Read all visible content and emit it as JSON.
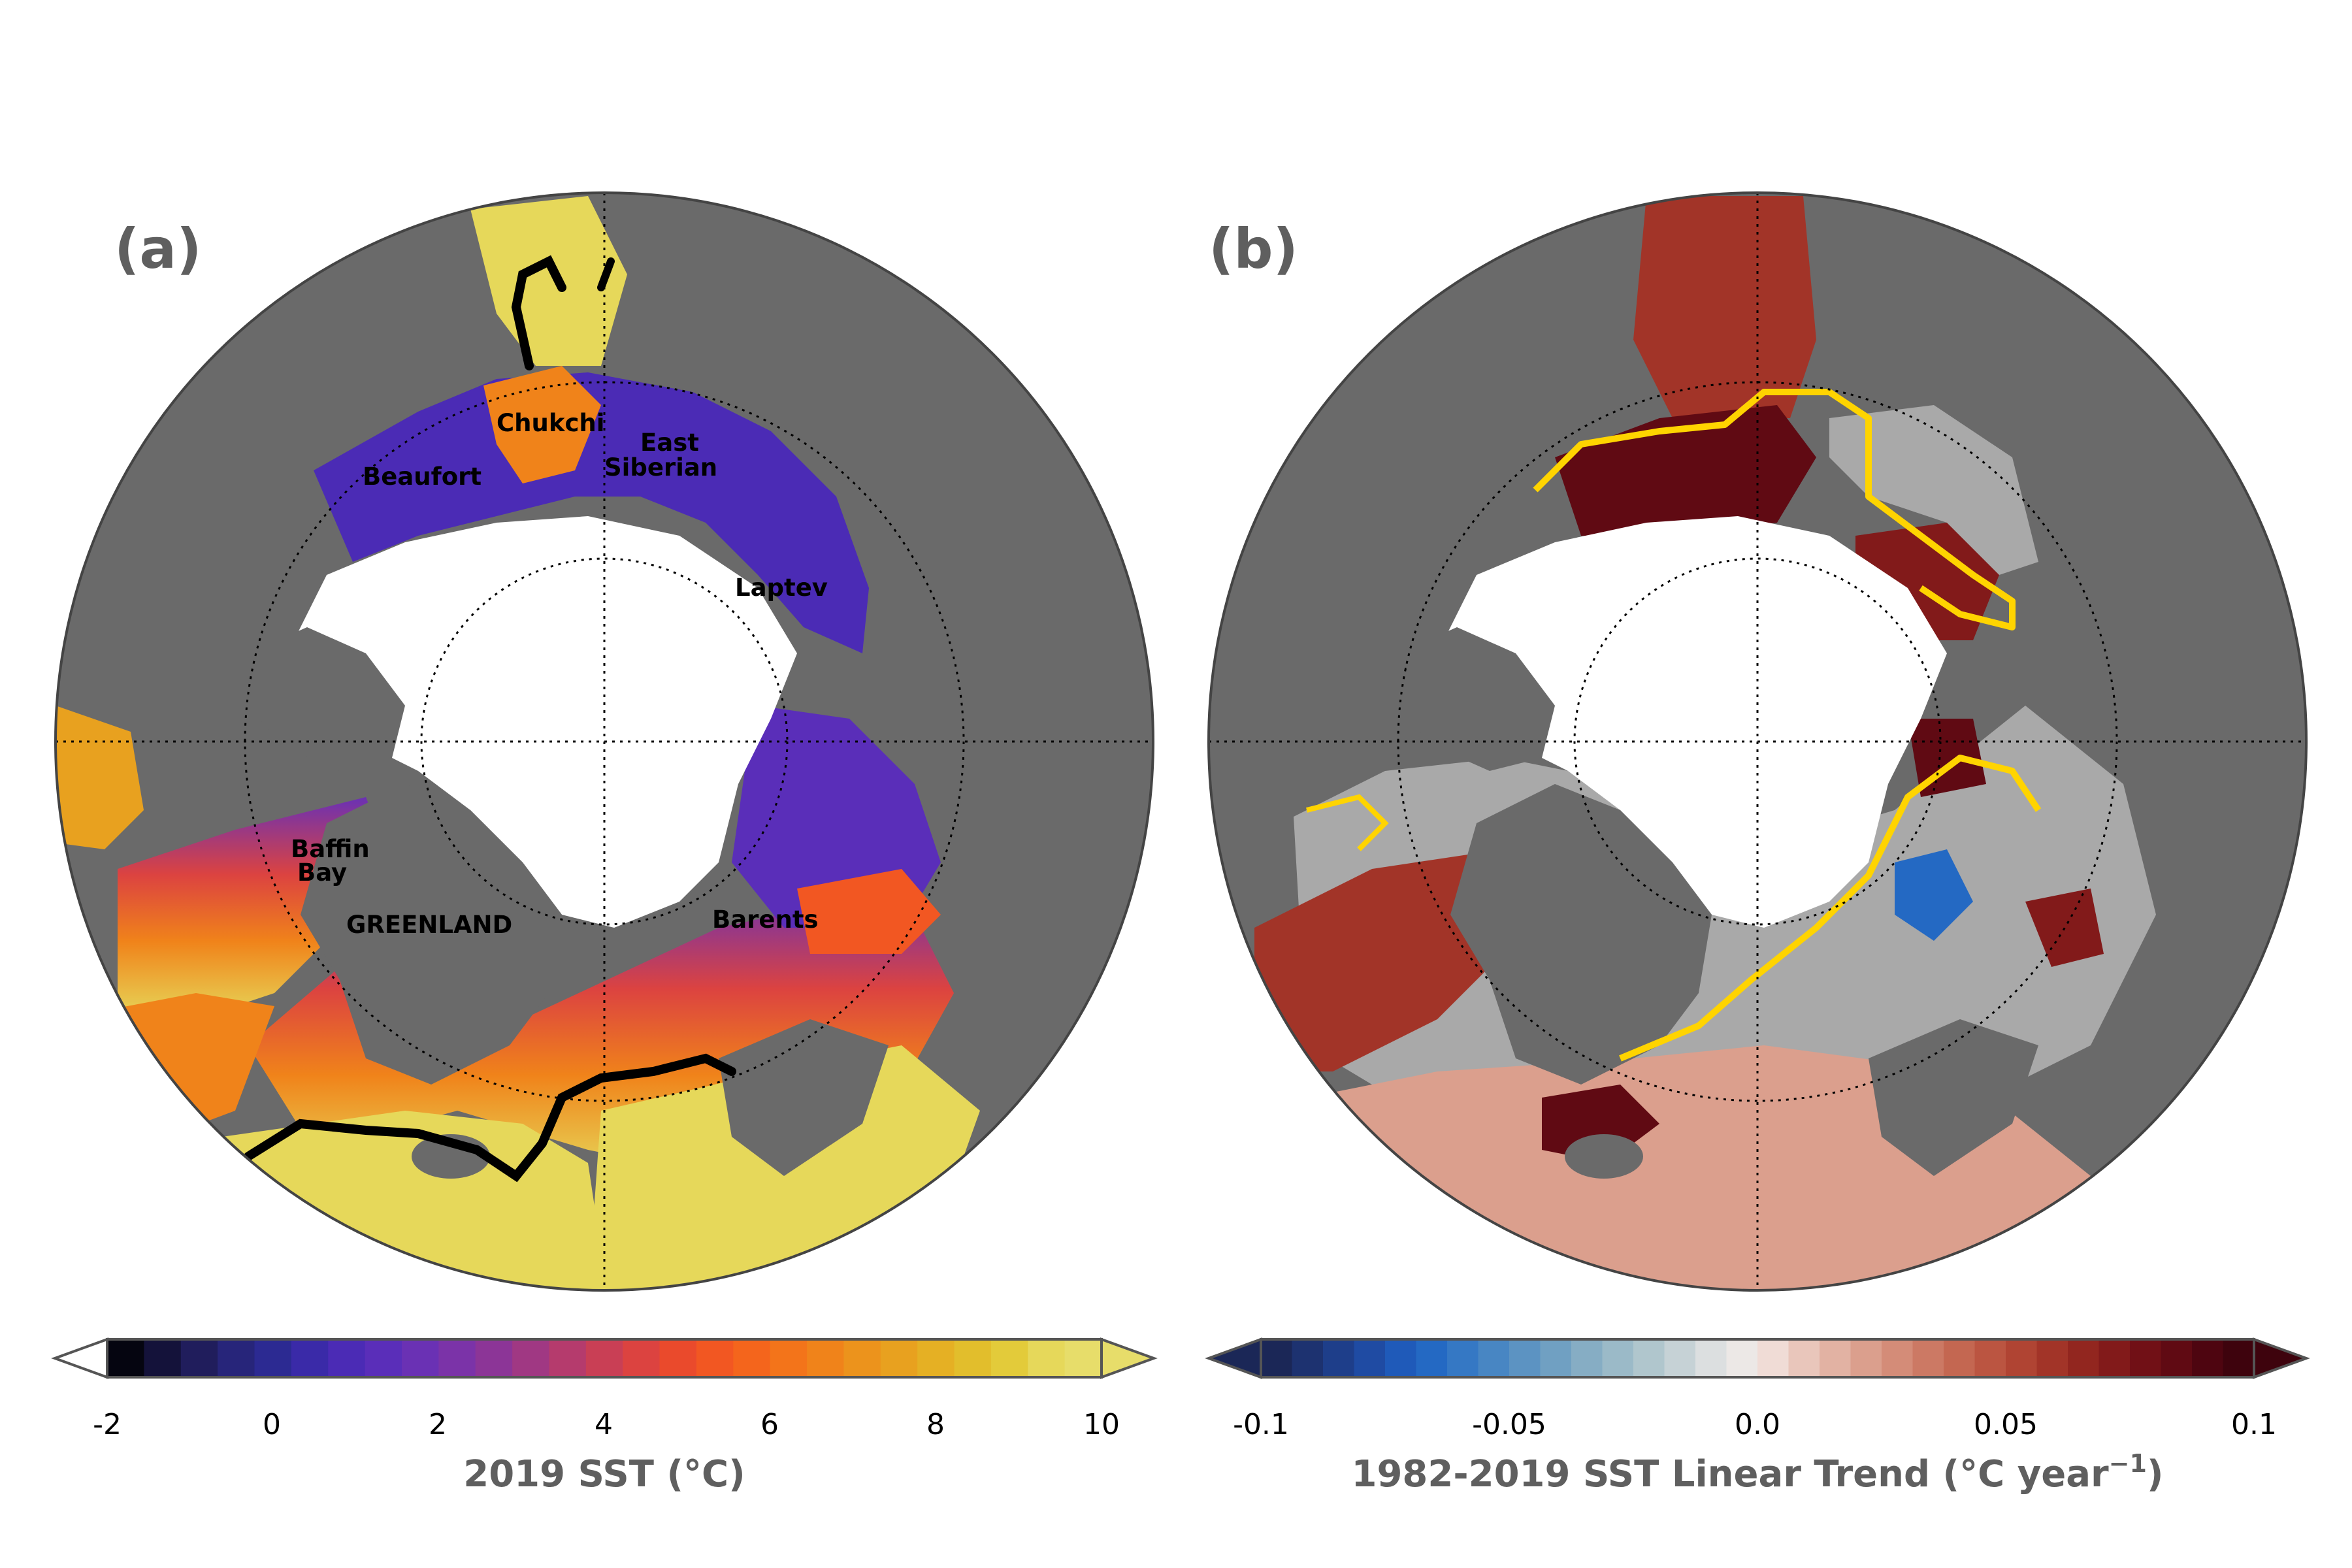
{
  "panels": [
    {
      "label": "(a)",
      "regions": [
        "Chukchi",
        "East",
        "Siberian",
        "Beaufort",
        "Laptev",
        "Baffin",
        "Bay",
        "GREENLAND",
        "Barents"
      ],
      "colorbar": {
        "ticks": [
          "-2",
          "0",
          "2",
          "4",
          "6",
          "8",
          "10"
        ],
        "title": "2019 SST (°C)",
        "colors": [
          "#050510",
          "#14123a",
          "#201d5c",
          "#27257a",
          "#2c2a92",
          "#3a2aa8",
          "#4b2bb5",
          "#5a2eb9",
          "#6a31b4",
          "#7b33a8",
          "#8c3597",
          "#a03883",
          "#b53b6d",
          "#c93f55",
          "#dc4340",
          "#ea4a2c",
          "#f25722",
          "#f4651c",
          "#f3741a",
          "#f0831a",
          "#ec931c",
          "#e8a11f",
          "#e5b024",
          "#e2be2c",
          "#e3cb3a",
          "#e6d85a",
          "#e7dd6a"
        ]
      }
    },
    {
      "label": "(b)",
      "colorbar": {
        "ticks": [
          "-0.1",
          "-0.05",
          "0.0",
          "0.05",
          "0.1"
        ],
        "title": "1982-2019 SST Linear Trend (°C year",
        "title_sup": "−1",
        "title_end": ")",
        "colors": [
          "#1b2757",
          "#1d3270",
          "#1e3e8a",
          "#1f4ba3",
          "#1f5ab9",
          "#2469c3",
          "#3578c4",
          "#4886c3",
          "#5c93c2",
          "#70a0c2",
          "#86adc4",
          "#9bbac8",
          "#b0c6cd",
          "#c6d2d6",
          "#dcdfe0",
          "#ece8e6",
          "#f0dcd6",
          "#e9c6bb",
          "#e2b2a3",
          "#db9f8d",
          "#d48c78",
          "#cc7964",
          "#c46751",
          "#bb5541",
          "#b04433",
          "#a23428",
          "#92261f",
          "#821a1a",
          "#711016",
          "#600a13",
          "#4e0510",
          "#3e030d"
        ]
      }
    }
  ]
}
